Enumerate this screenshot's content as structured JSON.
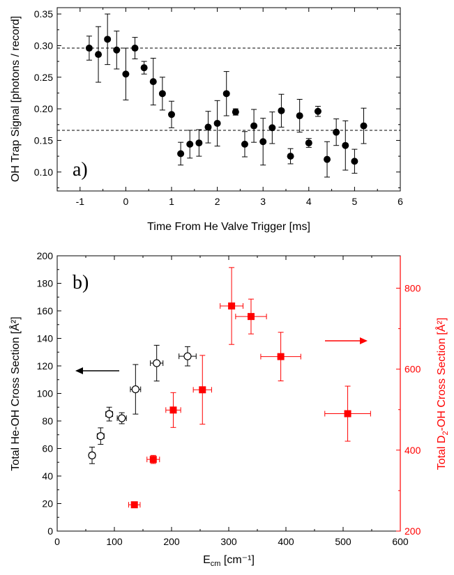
{
  "chart_data": [
    {
      "type": "scatter",
      "panel_label": "a)",
      "xlabel": "Time From He Valve Trigger [ms]",
      "ylabel": "OH Trap Signal [photons / record]",
      "xlim": [
        -1.5,
        6
      ],
      "ylim": [
        0.07,
        0.36
      ],
      "xticks": [
        "-1",
        "0",
        "1",
        "2",
        "3",
        "4",
        "5",
        "6"
      ],
      "yticks": [
        "0.10",
        "0.15",
        "0.20",
        "0.25",
        "0.30",
        "0.35"
      ],
      "grid": false,
      "reference_lines": [
        0.296,
        0.166
      ],
      "series": [
        {
          "marker": "filled-circle",
          "color": "#000000",
          "points": [
            {
              "x": -0.8,
              "y": 0.296,
              "err": 0.019
            },
            {
              "x": -0.6,
              "y": 0.286,
              "err": 0.044
            },
            {
              "x": -0.4,
              "y": 0.31,
              "err": 0.04
            },
            {
              "x": -0.2,
              "y": 0.293,
              "err": 0.03
            },
            {
              "x": 0.0,
              "y": 0.255,
              "err": 0.041
            },
            {
              "x": 0.2,
              "y": 0.296,
              "err": 0.017
            },
            {
              "x": 0.4,
              "y": 0.265,
              "err": 0.01
            },
            {
              "x": 0.6,
              "y": 0.243,
              "err": 0.037
            },
            {
              "x": 0.8,
              "y": 0.224,
              "err": 0.026
            },
            {
              "x": 1.0,
              "y": 0.191,
              "err": 0.021
            },
            {
              "x": 1.2,
              "y": 0.129,
              "err": 0.018
            },
            {
              "x": 1.4,
              "y": 0.144,
              "err": 0.022
            },
            {
              "x": 1.6,
              "y": 0.146,
              "err": 0.021
            },
            {
              "x": 1.8,
              "y": 0.171,
              "err": 0.025
            },
            {
              "x": 2.0,
              "y": 0.177,
              "err": 0.036
            },
            {
              "x": 2.2,
              "y": 0.224,
              "err": 0.035
            },
            {
              "x": 2.4,
              "y": 0.195,
              "err": 0.005
            },
            {
              "x": 2.6,
              "y": 0.144,
              "err": 0.02
            },
            {
              "x": 2.8,
              "y": 0.173,
              "err": 0.026
            },
            {
              "x": 3.0,
              "y": 0.148,
              "err": 0.037
            },
            {
              "x": 3.2,
              "y": 0.17,
              "err": 0.025
            },
            {
              "x": 3.4,
              "y": 0.197,
              "err": 0.026
            },
            {
              "x": 3.6,
              "y": 0.125,
              "err": 0.012
            },
            {
              "x": 3.8,
              "y": 0.189,
              "err": 0.026
            },
            {
              "x": 4.0,
              "y": 0.146,
              "err": 0.007
            },
            {
              "x": 4.2,
              "y": 0.196,
              "err": 0.008
            },
            {
              "x": 4.4,
              "y": 0.12,
              "err": 0.028
            },
            {
              "x": 4.6,
              "y": 0.163,
              "err": 0.021
            },
            {
              "x": 4.8,
              "y": 0.142,
              "err": 0.039
            },
            {
              "x": 5.0,
              "y": 0.117,
              "err": 0.019
            },
            {
              "x": 5.2,
              "y": 0.173,
              "err": 0.028
            }
          ]
        }
      ]
    },
    {
      "type": "scatter",
      "panel_label": "b)",
      "xlabel": "E",
      "xlabel_sub": "cm",
      "xlabel_tail": " [cm⁻¹]",
      "ylabel": "Total He-OH Cross Section [Å²]",
      "y2label_pre": "Total D",
      "y2label_sub": "2",
      "y2label_post": "-OH Cross Section [Å²]",
      "xlim": [
        0,
        600
      ],
      "ylim": [
        0,
        200
      ],
      "y2lim": [
        200,
        880
      ],
      "xticks": [
        "0",
        "100",
        "200",
        "300",
        "400",
        "500",
        "600"
      ],
      "yticks": [
        "0",
        "20",
        "40",
        "60",
        "80",
        "100",
        "120",
        "140",
        "160",
        "180",
        "200"
      ],
      "y2ticks": [
        "200",
        "400",
        "600",
        "800"
      ],
      "grid": false,
      "series": [
        {
          "axis": "left",
          "marker": "open-circle",
          "color": "#000000",
          "points": [
            {
              "x": 61,
              "y": 55,
              "xerr": 5,
              "yerr": 6
            },
            {
              "x": 76,
              "y": 69,
              "xerr": 6,
              "yerr": 6
            },
            {
              "x": 91,
              "y": 85,
              "xerr": 6,
              "yerr": 5
            },
            {
              "x": 113,
              "y": 82,
              "xerr": 8,
              "yerr": 4
            },
            {
              "x": 137,
              "y": 103,
              "xerr": 9,
              "yerr": 18
            },
            {
              "x": 174,
              "y": 122,
              "xerr": 11,
              "yerr": 13
            },
            {
              "x": 228,
              "y": 127,
              "xerr": 15,
              "yerr": 7
            }
          ]
        },
        {
          "axis": "right",
          "marker": "filled-square",
          "color": "#ff0000",
          "points": [
            {
              "x": 135,
              "y": 265,
              "xerr": 10,
              "yerr": 0
            },
            {
              "x": 168,
              "y": 377,
              "xerr": 11,
              "yerr": 10
            },
            {
              "x": 203,
              "y": 499,
              "xerr": 13,
              "yerr": 43
            },
            {
              "x": 254,
              "y": 549,
              "xerr": 16,
              "yerr": 85
            },
            {
              "x": 305,
              "y": 756,
              "xerr": 20,
              "yerr": 95
            },
            {
              "x": 339,
              "y": 730,
              "xerr": 27,
              "yerr": 43
            },
            {
              "x": 391,
              "y": 631,
              "xerr": 35,
              "yerr": 60
            },
            {
              "x": 508,
              "y": 490,
              "xerr": 40,
              "yerr": 68
            }
          ]
        }
      ]
    }
  ]
}
